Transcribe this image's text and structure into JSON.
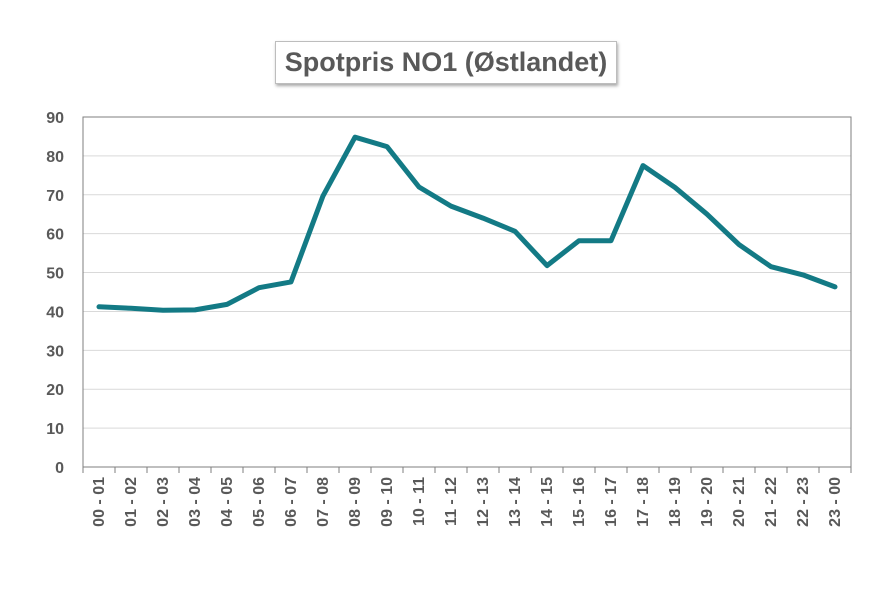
{
  "chart_data": {
    "type": "line",
    "title": "Spotpris NO1 (Østlandet)",
    "xlabel": "",
    "ylabel": "",
    "categories": [
      "00 - 01",
      "01 - 02",
      "02 - 03",
      "03 - 04",
      "04 - 05",
      "05 - 06",
      "06 - 07",
      "07 - 08",
      "08 - 09",
      "09 - 10",
      "10 - 11",
      "11 - 12",
      "12 - 13",
      "13 - 14",
      "14 - 15",
      "15 - 16",
      "16 - 17",
      "17 - 18",
      "18 - 19",
      "19 - 20",
      "20 - 21",
      "21 - 22",
      "22 - 23",
      "23 - 00"
    ],
    "series": [
      {
        "values": [
          41.2,
          40.8,
          40.3,
          40.4,
          41.8,
          46.1,
          47.6,
          69.7,
          84.8,
          82.4,
          72.0,
          67.1,
          64.0,
          60.6,
          51.8,
          58.2,
          58.2,
          77.5,
          71.9,
          65.0,
          57.2,
          51.5,
          49.4,
          46.3
        ],
        "color": "#137A85"
      }
    ],
    "ylim": [
      0,
      90
    ],
    "yticks": [
      0,
      10,
      20,
      30,
      40,
      50,
      60,
      70,
      80,
      90
    ],
    "grid": true,
    "legend": "none"
  }
}
